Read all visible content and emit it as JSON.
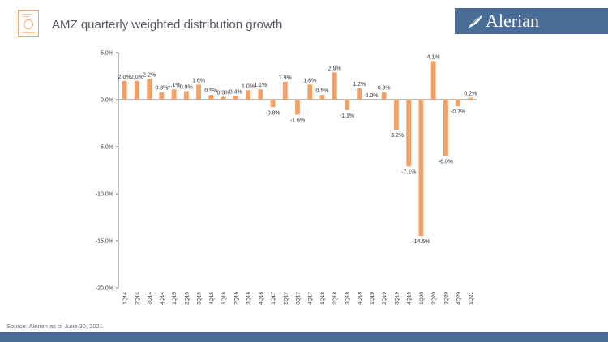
{
  "header": {
    "title": "AMZ quarterly weighted distribution growth",
    "brand": "Alerian",
    "brand_color": "#4a6d98"
  },
  "footer": {
    "source": "Source: Alerian as of June 30, 2021"
  },
  "colors": {
    "bar": "#f4a064",
    "axis": "#555555",
    "text": "#333333"
  },
  "chart_data": {
    "type": "bar",
    "title": "AMZ quarterly weighted distribution growth",
    "xlabel": "",
    "ylabel": "",
    "ylim": [
      -20,
      5
    ],
    "yticks": [
      5,
      0,
      -5,
      -10,
      -15,
      -20
    ],
    "ytick_labels": [
      "5.0%",
      "0.0%",
      "-5.0%",
      "-10.0%",
      "-15.0%",
      "-20.0%"
    ],
    "grid": false,
    "categories": [
      "1Q14",
      "2Q14",
      "3Q14",
      "4Q14",
      "1Q15",
      "2Q15",
      "3Q15",
      "4Q15",
      "1Q16",
      "2Q16",
      "3Q16",
      "4Q16",
      "1Q17",
      "2Q17",
      "3Q17",
      "4Q17",
      "1Q18",
      "2Q18",
      "3Q18",
      "4Q18",
      "1Q19",
      "2Q19",
      "3Q19",
      "4Q19",
      "1Q20",
      "2Q20",
      "3Q20",
      "4Q20",
      "1Q21"
    ],
    "values": [
      2.0,
      2.0,
      2.2,
      0.8,
      1.1,
      0.9,
      1.6,
      0.5,
      0.3,
      0.4,
      1.0,
      1.1,
      -0.8,
      1.9,
      -1.6,
      1.6,
      0.5,
      2.9,
      -1.1,
      1.2,
      0.0,
      0.8,
      -3.2,
      -7.1,
      -14.5,
      4.1,
      -6.0,
      -0.7,
      0.2
    ],
    "data_labels": [
      "2.0%",
      "2.0%",
      "2.2%",
      "0.8%",
      "1.1%",
      "0.9%",
      "1.6%",
      "0.5%",
      "0.3%",
      "0.4%",
      "1.0%",
      "1.1%",
      "-0.8%",
      "1.9%",
      "-1.6%",
      "1.6%",
      "0.5%",
      "2.9%",
      "-1.1%",
      "1.2%",
      "0.0%",
      "0.8%",
      "-3.2%",
      "-7.1%",
      "-14.5%",
      "4.1%",
      "-6.0%",
      "-0.7%",
      "0.2%"
    ]
  }
}
